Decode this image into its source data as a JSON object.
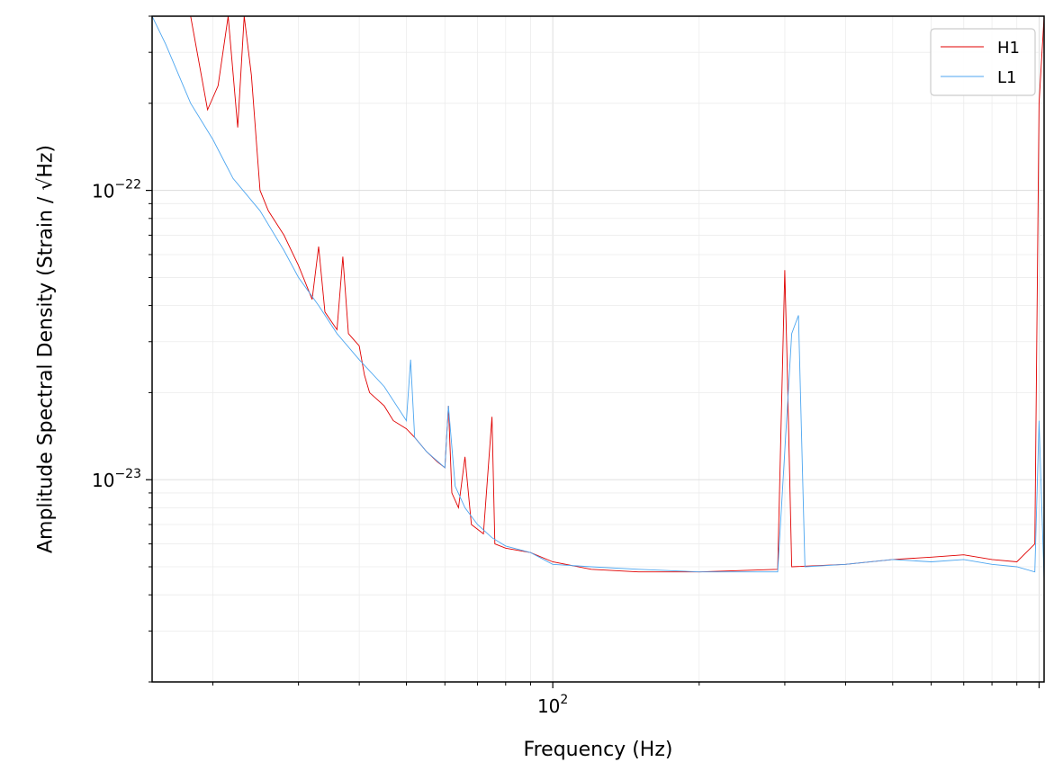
{
  "chart_data": {
    "type": "line",
    "xlabel": "Frequency (Hz)",
    "ylabel": "Amplitude Spectral Density (Strain / √Hz)",
    "x_scale": "log",
    "y_scale": "log",
    "xlim": [
      15,
      1024
    ],
    "ylim": [
      2e-24,
      4e-22
    ],
    "x_ticks": [
      {
        "value": 100,
        "label": "10^2"
      }
    ],
    "y_ticks": [
      {
        "value": 1e-23,
        "label": "10^-23"
      },
      {
        "value": 1e-22,
        "label": "10^-22"
      }
    ],
    "grid": true,
    "legend": {
      "position": "top-right",
      "entries": [
        "H1",
        "L1"
      ]
    },
    "series": [
      {
        "name": "H1",
        "color": "#e00000",
        "points": [
          [
            15,
            4e-22
          ],
          [
            17,
            4e-22
          ],
          [
            18,
            4e-22
          ],
          [
            19.5,
            1.9e-22
          ],
          [
            20.5,
            2.3e-22
          ],
          [
            21.5,
            4e-22
          ],
          [
            22.5,
            1.65e-22
          ],
          [
            23.2,
            4e-22
          ],
          [
            24,
            2.5e-22
          ],
          [
            25,
            1e-22
          ],
          [
            26,
            8.5e-23
          ],
          [
            28,
            7e-23
          ],
          [
            30,
            5.5e-23
          ],
          [
            32,
            4.2e-23
          ],
          [
            33,
            6.4e-23
          ],
          [
            34,
            3.8e-23
          ],
          [
            36,
            3.3e-23
          ],
          [
            37,
            5.9e-23
          ],
          [
            38,
            3.2e-23
          ],
          [
            40,
            2.9e-23
          ],
          [
            41,
            2.3e-23
          ],
          [
            42,
            2e-23
          ],
          [
            45,
            1.8e-23
          ],
          [
            47,
            1.6e-23
          ],
          [
            50,
            1.5e-23
          ],
          [
            52,
            1.4e-23
          ],
          [
            55,
            1.25e-23
          ],
          [
            58,
            1.15e-23
          ],
          [
            60,
            1.1e-23
          ],
          [
            61,
            1.8e-23
          ],
          [
            62,
            9e-24
          ],
          [
            64,
            8e-24
          ],
          [
            66,
            1.2e-23
          ],
          [
            68,
            7e-24
          ],
          [
            72,
            6.5e-24
          ],
          [
            75,
            1.65e-23
          ],
          [
            76,
            6e-24
          ],
          [
            80,
            5.8e-24
          ],
          [
            90,
            5.6e-24
          ],
          [
            100,
            5.2e-24
          ],
          [
            120,
            4.9e-24
          ],
          [
            150,
            4.8e-24
          ],
          [
            200,
            4.8e-24
          ],
          [
            290,
            4.9e-24
          ],
          [
            300,
            5.3e-23
          ],
          [
            303,
            2.7e-23
          ],
          [
            310,
            5e-24
          ],
          [
            400,
            5.1e-24
          ],
          [
            500,
            5.3e-24
          ],
          [
            600,
            5.4e-24
          ],
          [
            700,
            5.5e-24
          ],
          [
            800,
            5.3e-24
          ],
          [
            900,
            5.2e-24
          ],
          [
            980,
            6e-24
          ],
          [
            1000,
            2e-22
          ],
          [
            1024,
            4e-22
          ]
        ]
      },
      {
        "name": "L1",
        "color": "#4da6f0",
        "points": [
          [
            15,
            4e-22
          ],
          [
            16,
            3.2e-22
          ],
          [
            18,
            2e-22
          ],
          [
            20,
            1.5e-22
          ],
          [
            22,
            1.1e-22
          ],
          [
            25,
            8.5e-23
          ],
          [
            28,
            6.2e-23
          ],
          [
            30,
            5e-23
          ],
          [
            33,
            4e-23
          ],
          [
            36,
            3.2e-23
          ],
          [
            40,
            2.6e-23
          ],
          [
            45,
            2.1e-23
          ],
          [
            50,
            1.6e-23
          ],
          [
            51,
            2.6e-23
          ],
          [
            52,
            1.4e-23
          ],
          [
            55,
            1.25e-23
          ],
          [
            60,
            1.1e-23
          ],
          [
            61,
            1.8e-23
          ],
          [
            63,
            9.5e-24
          ],
          [
            66,
            8e-24
          ],
          [
            70,
            7e-24
          ],
          [
            75,
            6.3e-24
          ],
          [
            80,
            5.9e-24
          ],
          [
            90,
            5.6e-24
          ],
          [
            100,
            5.1e-24
          ],
          [
            120,
            5e-24
          ],
          [
            150,
            4.9e-24
          ],
          [
            200,
            4.8e-24
          ],
          [
            290,
            4.8e-24
          ],
          [
            310,
            3.2e-23
          ],
          [
            320,
            3.7e-23
          ],
          [
            330,
            5e-24
          ],
          [
            400,
            5.1e-24
          ],
          [
            500,
            5.3e-24
          ],
          [
            600,
            5.2e-24
          ],
          [
            700,
            5.3e-24
          ],
          [
            800,
            5.1e-24
          ],
          [
            900,
            5e-24
          ],
          [
            980,
            4.8e-24
          ],
          [
            1000,
            1.6e-23
          ],
          [
            1024,
            4.5e-24
          ]
        ]
      }
    ]
  }
}
